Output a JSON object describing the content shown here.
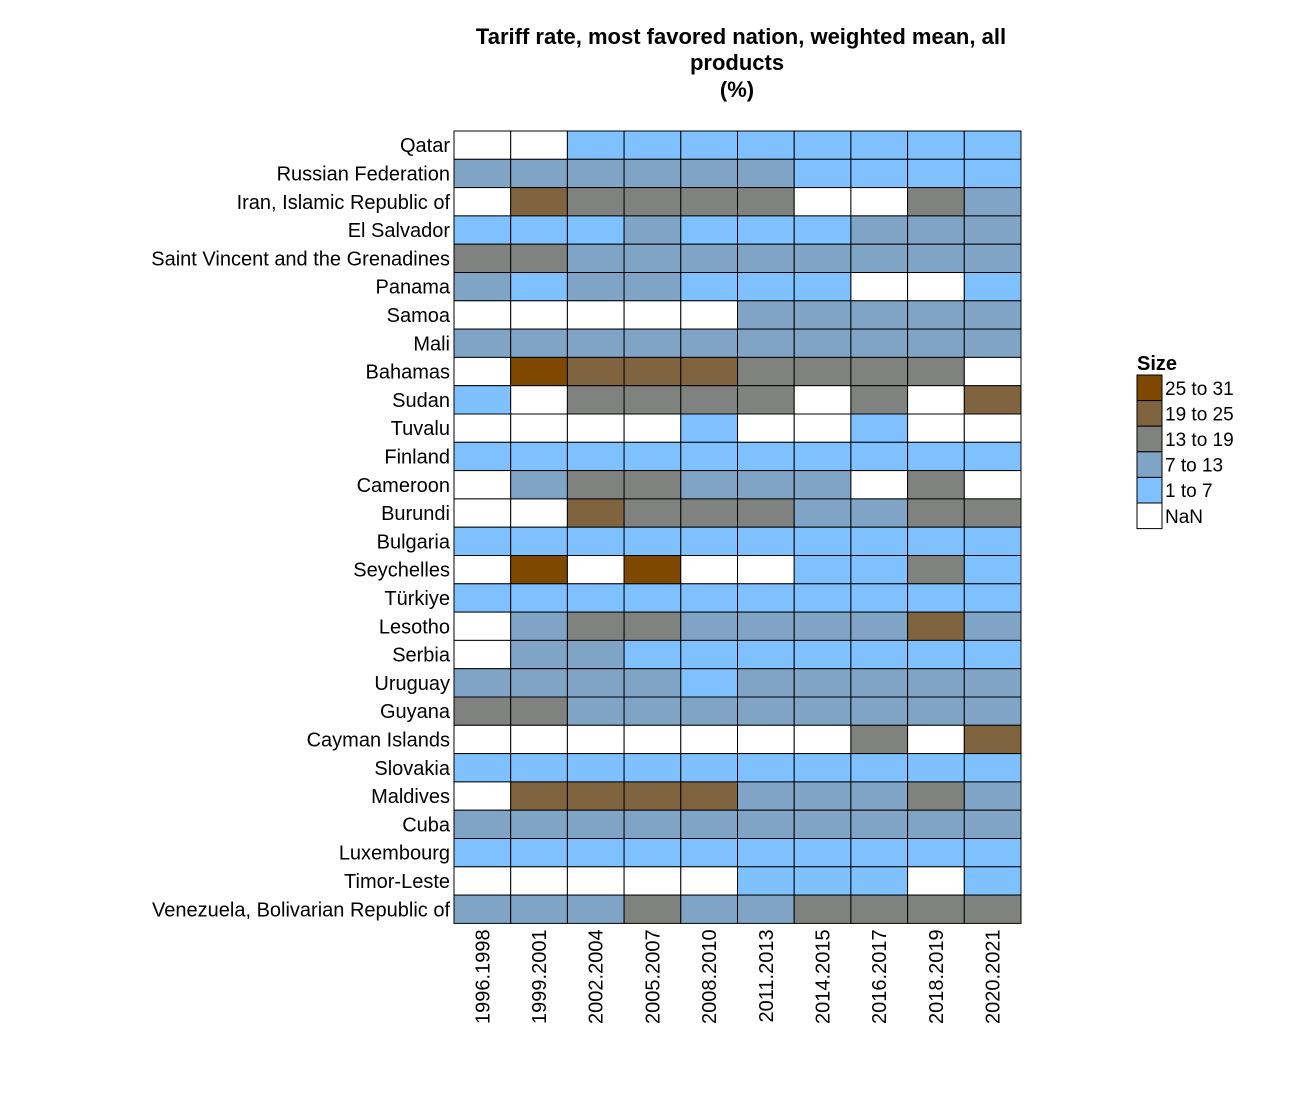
{
  "chart_data": {
    "type": "heatmap",
    "title": "Tariff rate, most favored nation, weighted mean, all products (%)",
    "title_lines": [
      "Tariff rate, most favored nation, weighted mean, all",
      "products",
      "(%)"
    ],
    "xlabel": "",
    "ylabel": "",
    "columns": [
      "1996.1998",
      "1999.2001",
      "2002.2004",
      "2005.2007",
      "2008.2010",
      "2011.2013",
      "2014.2015",
      "2016.2017",
      "2018.2019",
      "2020.2021"
    ],
    "rows": [
      "Qatar",
      "Russian Federation",
      "Iran, Islamic Republic of",
      "El Salvador",
      "Saint Vincent and the Grenadines",
      "Panama",
      "Samoa",
      "Mali",
      "Bahamas",
      "Sudan",
      "Tuvalu",
      "Finland",
      "Cameroon",
      "Burundi",
      "Bulgaria",
      "Seychelles",
      "Türkiye",
      "Lesotho",
      "Serbia",
      "Uruguay",
      "Guyana",
      "Cayman Islands",
      "Slovakia",
      "Maldives",
      "Cuba",
      "Luxembourg",
      "Timor-Leste",
      "Venezuela, Bolivarian Republic of"
    ],
    "legend": {
      "title": "Size",
      "placement": "right",
      "bins": [
        {
          "label": "25 to 31",
          "color": "#7f4800"
        },
        {
          "label": "19 to 25",
          "color": "#7f643f"
        },
        {
          "label": "13 to 19",
          "color": "#7f827f"
        },
        {
          "label": "7 to 13",
          "color": "#7fa4c6"
        },
        {
          "label": "1 to 7",
          "color": "#7fc1ff"
        },
        {
          "label": "NaN",
          "color": "#ffffff"
        }
      ]
    },
    "cells": [
      [
        "NaN",
        "NaN",
        "1 to 7",
        "1 to 7",
        "1 to 7",
        "1 to 7",
        "1 to 7",
        "1 to 7",
        "1 to 7",
        "1 to 7"
      ],
      [
        "7 to 13",
        "7 to 13",
        "7 to 13",
        "7 to 13",
        "7 to 13",
        "7 to 13",
        "1 to 7",
        "1 to 7",
        "1 to 7",
        "1 to 7"
      ],
      [
        "NaN",
        "19 to 25",
        "13 to 19",
        "13 to 19",
        "13 to 19",
        "13 to 19",
        "NaN",
        "NaN",
        "13 to 19",
        "7 to 13"
      ],
      [
        "1 to 7",
        "1 to 7",
        "1 to 7",
        "7 to 13",
        "1 to 7",
        "1 to 7",
        "1 to 7",
        "7 to 13",
        "7 to 13",
        "7 to 13"
      ],
      [
        "13 to 19",
        "13 to 19",
        "7 to 13",
        "7 to 13",
        "7 to 13",
        "7 to 13",
        "7 to 13",
        "7 to 13",
        "7 to 13",
        "7 to 13"
      ],
      [
        "7 to 13",
        "1 to 7",
        "7 to 13",
        "7 to 13",
        "1 to 7",
        "1 to 7",
        "1 to 7",
        "NaN",
        "NaN",
        "1 to 7"
      ],
      [
        "NaN",
        "NaN",
        "NaN",
        "NaN",
        "NaN",
        "7 to 13",
        "7 to 13",
        "7 to 13",
        "7 to 13",
        "7 to 13"
      ],
      [
        "7 to 13",
        "7 to 13",
        "7 to 13",
        "7 to 13",
        "7 to 13",
        "7 to 13",
        "7 to 13",
        "7 to 13",
        "7 to 13",
        "7 to 13"
      ],
      [
        "NaN",
        "25 to 31",
        "19 to 25",
        "19 to 25",
        "19 to 25",
        "13 to 19",
        "13 to 19",
        "13 to 19",
        "13 to 19",
        "NaN"
      ],
      [
        "1 to 7",
        "NaN",
        "13 to 19",
        "13 to 19",
        "13 to 19",
        "13 to 19",
        "NaN",
        "13 to 19",
        "NaN",
        "19 to 25"
      ],
      [
        "NaN",
        "NaN",
        "NaN",
        "NaN",
        "1 to 7",
        "NaN",
        "NaN",
        "1 to 7",
        "NaN",
        "NaN"
      ],
      [
        "1 to 7",
        "1 to 7",
        "1 to 7",
        "1 to 7",
        "1 to 7",
        "1 to 7",
        "1 to 7",
        "1 to 7",
        "1 to 7",
        "1 to 7"
      ],
      [
        "NaN",
        "7 to 13",
        "13 to 19",
        "13 to 19",
        "7 to 13",
        "7 to 13",
        "7 to 13",
        "NaN",
        "13 to 19",
        "NaN"
      ],
      [
        "NaN",
        "NaN",
        "19 to 25",
        "13 to 19",
        "13 to 19",
        "13 to 19",
        "7 to 13",
        "7 to 13",
        "13 to 19",
        "13 to 19"
      ],
      [
        "1 to 7",
        "1 to 7",
        "1 to 7",
        "1 to 7",
        "1 to 7",
        "1 to 7",
        "1 to 7",
        "1 to 7",
        "1 to 7",
        "1 to 7"
      ],
      [
        "NaN",
        "25 to 31",
        "NaN",
        "25 to 31",
        "NaN",
        "NaN",
        "1 to 7",
        "1 to 7",
        "13 to 19",
        "1 to 7"
      ],
      [
        "1 to 7",
        "1 to 7",
        "1 to 7",
        "1 to 7",
        "1 to 7",
        "1 to 7",
        "1 to 7",
        "1 to 7",
        "1 to 7",
        "1 to 7"
      ],
      [
        "NaN",
        "7 to 13",
        "13 to 19",
        "13 to 19",
        "7 to 13",
        "7 to 13",
        "7 to 13",
        "7 to 13",
        "19 to 25",
        "7 to 13"
      ],
      [
        "NaN",
        "7 to 13",
        "7 to 13",
        "1 to 7",
        "1 to 7",
        "1 to 7",
        "1 to 7",
        "1 to 7",
        "1 to 7",
        "1 to 7"
      ],
      [
        "7 to 13",
        "7 to 13",
        "7 to 13",
        "7 to 13",
        "1 to 7",
        "7 to 13",
        "7 to 13",
        "7 to 13",
        "7 to 13",
        "7 to 13"
      ],
      [
        "13 to 19",
        "13 to 19",
        "7 to 13",
        "7 to 13",
        "7 to 13",
        "7 to 13",
        "7 to 13",
        "7 to 13",
        "7 to 13",
        "7 to 13"
      ],
      [
        "NaN",
        "NaN",
        "NaN",
        "NaN",
        "NaN",
        "NaN",
        "NaN",
        "13 to 19",
        "NaN",
        "19 to 25"
      ],
      [
        "1 to 7",
        "1 to 7",
        "1 to 7",
        "1 to 7",
        "1 to 7",
        "1 to 7",
        "1 to 7",
        "1 to 7",
        "1 to 7",
        "1 to 7"
      ],
      [
        "NaN",
        "19 to 25",
        "19 to 25",
        "19 to 25",
        "19 to 25",
        "7 to 13",
        "7 to 13",
        "7 to 13",
        "13 to 19",
        "7 to 13"
      ],
      [
        "7 to 13",
        "7 to 13",
        "7 to 13",
        "7 to 13",
        "7 to 13",
        "7 to 13",
        "7 to 13",
        "7 to 13",
        "7 to 13",
        "7 to 13"
      ],
      [
        "1 to 7",
        "1 to 7",
        "1 to 7",
        "1 to 7",
        "1 to 7",
        "1 to 7",
        "1 to 7",
        "1 to 7",
        "1 to 7",
        "1 to 7"
      ],
      [
        "NaN",
        "NaN",
        "NaN",
        "NaN",
        "NaN",
        "1 to 7",
        "1 to 7",
        "1 to 7",
        "NaN",
        "1 to 7"
      ],
      [
        "7 to 13",
        "7 to 13",
        "7 to 13",
        "13 to 19",
        "7 to 13",
        "7 to 13",
        "13 to 19",
        "13 to 19",
        "13 to 19",
        "13 to 19"
      ]
    ]
  }
}
